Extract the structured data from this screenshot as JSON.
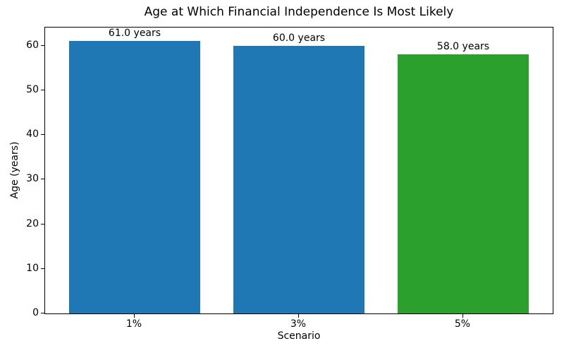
{
  "chart_data": {
    "type": "bar",
    "title": "Age at Which Financial Independence Is Most Likely",
    "xlabel": "Scenario",
    "ylabel": "Age (years)",
    "categories": [
      "1%",
      "3%",
      "5%"
    ],
    "values": [
      61.0,
      60.0,
      58.0
    ],
    "bar_labels": [
      "61.0 years",
      "60.0 years",
      "58.0 years"
    ],
    "bar_colors": [
      "#1f77b4",
      "#1f77b4",
      "#2ca02c"
    ],
    "yticks": [
      0,
      10,
      20,
      30,
      40,
      50,
      60
    ],
    "ylim": [
      0,
      64.05
    ],
    "xlim": [
      -0.545,
      2.545
    ],
    "bar_width": 0.8,
    "grid": false,
    "legend": null,
    "background_color": "#ffffff",
    "spine_color": "#000000"
  }
}
